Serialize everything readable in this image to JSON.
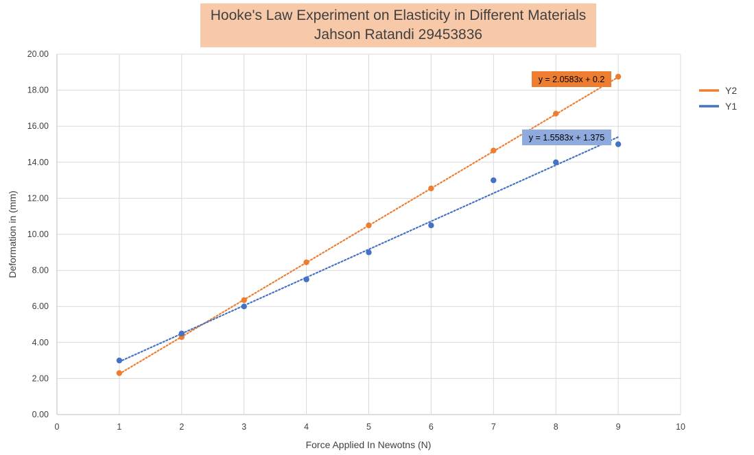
{
  "chart_data": {
    "type": "scatter",
    "title": "Hooke's Law Experiment on Elasticity in Different Materials",
    "subtitle": "Jahson Ratandi 29453836",
    "xlabel": "Force Applied In Newotns (N)",
    "ylabel": "Deformation in (mm)",
    "xlim": [
      0,
      10
    ],
    "ylim": [
      0,
      20
    ],
    "x_ticks": [
      "0",
      "1",
      "2",
      "3",
      "4",
      "5",
      "6",
      "7",
      "8",
      "9",
      "10"
    ],
    "y_ticks": [
      "0.00",
      "2.00",
      "4.00",
      "6.00",
      "8.00",
      "10.00",
      "12.00",
      "14.00",
      "16.00",
      "18.00",
      "20.00"
    ],
    "grid": true,
    "legend_position": "right",
    "series": [
      {
        "name": "Y2",
        "color": "#ed7d31",
        "x": [
          1,
          2,
          3,
          4,
          5,
          6,
          7,
          8,
          9
        ],
        "y": [
          2.3,
          4.3,
          6.35,
          8.45,
          10.5,
          12.55,
          14.65,
          16.7,
          18.75
        ],
        "trendline": {
          "slope": 2.0583,
          "intercept": 0.2,
          "label": "y = 2.0583x + 0.2"
        }
      },
      {
        "name": "Y1",
        "color": "#4472c4",
        "x": [
          1,
          2,
          3,
          4,
          5,
          6,
          7,
          8,
          9
        ],
        "y": [
          3.0,
          4.5,
          6.0,
          7.5,
          9.0,
          10.5,
          13.0,
          14.0,
          15.0
        ],
        "trendline": {
          "slope": 1.5583,
          "intercept": 1.375,
          "label": "y = 1.5583x + 1.375"
        }
      }
    ]
  }
}
